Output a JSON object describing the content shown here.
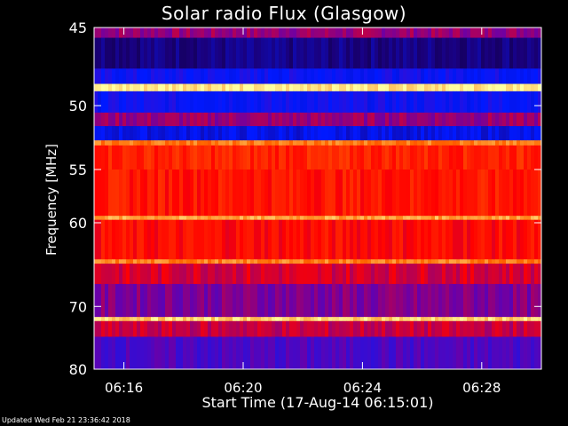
{
  "chart_data": {
    "type": "heatmap",
    "title": "Solar radio Flux (Glasgow)",
    "xlabel": "Start Time (17-Aug-14 06:15:01)",
    "ylabel": "Frequency [MHz]",
    "x_ticks": [
      "06:16",
      "06:20",
      "06:24",
      "06:28"
    ],
    "x_tick_minutes": [
      1,
      5,
      9,
      13
    ],
    "x_range_minutes": [
      0,
      15
    ],
    "y_ticks": [
      45,
      50,
      55,
      60,
      70,
      80
    ],
    "y_range": [
      45,
      80
    ],
    "y_scale": "reciprocal",
    "colormap": [
      "#000000",
      "#1a007a",
      "#0019ff",
      "#6a00a8",
      "#ff0000",
      "#ff6a00",
      "#ffffa0"
    ],
    "bands": [
      {
        "from": 45.0,
        "to": 45.6,
        "level": 0.55
      },
      {
        "from": 45.6,
        "to": 47.5,
        "level": 0.18
      },
      {
        "from": 47.5,
        "to": 48.5,
        "level": 0.35
      },
      {
        "from": 48.5,
        "to": 49.0,
        "level": 0.98
      },
      {
        "from": 49.0,
        "to": 50.5,
        "level": 0.35
      },
      {
        "from": 50.5,
        "to": 51.5,
        "level": 0.55
      },
      {
        "from": 51.5,
        "to": 52.6,
        "level": 0.3
      },
      {
        "from": 52.6,
        "to": 53.0,
        "level": 0.85
      },
      {
        "from": 53.0,
        "to": 55.0,
        "level": 0.72
      },
      {
        "from": 55.0,
        "to": 59.3,
        "level": 0.7
      },
      {
        "from": 59.3,
        "to": 59.7,
        "level": 0.9
      },
      {
        "from": 59.7,
        "to": 64.0,
        "level": 0.68
      },
      {
        "from": 64.0,
        "to": 64.5,
        "level": 0.86
      },
      {
        "from": 64.5,
        "to": 67.0,
        "level": 0.62
      },
      {
        "from": 67.0,
        "to": 71.5,
        "level": 0.52
      },
      {
        "from": 71.5,
        "to": 72.1,
        "level": 0.95
      },
      {
        "from": 72.1,
        "to": 74.5,
        "level": 0.6
      },
      {
        "from": 74.5,
        "to": 80.0,
        "level": 0.45
      }
    ],
    "footer": "Updated Wed Feb 21 23:36:42 2018"
  }
}
